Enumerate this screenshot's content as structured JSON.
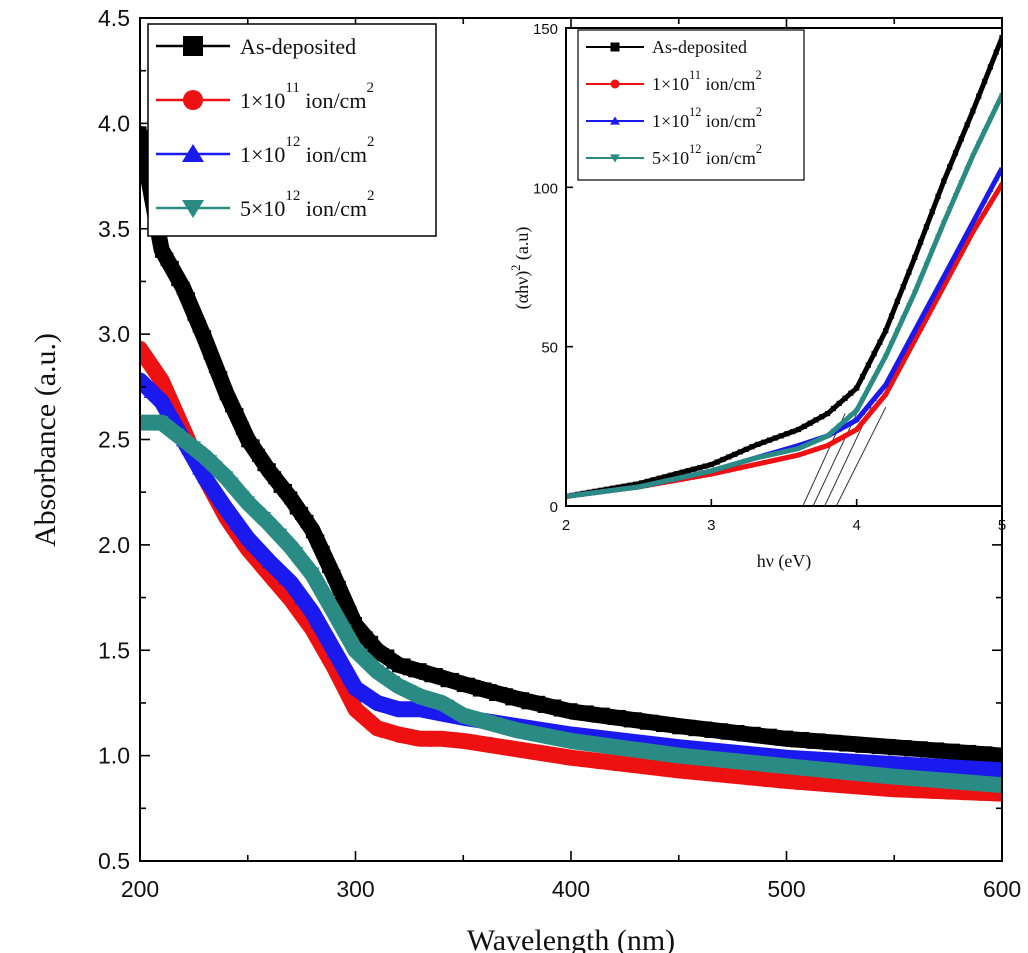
{
  "colors": {
    "black": "#000000",
    "red": "#ee1111",
    "blue": "#1a1aee",
    "teal": "#2a8a84"
  },
  "chart_data": [
    {
      "type": "line",
      "xlabel": "Wavelength (nm)",
      "ylabel": "Absorbance (a.u.)",
      "xlim": [
        200,
        600
      ],
      "ylim": [
        0.5,
        4.5
      ],
      "xticks": [
        "200",
        "300",
        "400",
        "500",
        "600"
      ],
      "yticks": [
        "0.5",
        "1.0",
        "1.5",
        "2.0",
        "2.5",
        "3.0",
        "3.5",
        "4.0",
        "4.5"
      ],
      "legend_position": "top-left",
      "series": [
        {
          "name": "As-deposited",
          "name_parts": [
            "As-deposited",
            "",
            ""
          ],
          "color": "#000000",
          "marker": "square",
          "x": [
            200,
            210,
            220,
            230,
            240,
            250,
            260,
            270,
            280,
            290,
            300,
            310,
            320,
            330,
            340,
            350,
            375,
            400,
            450,
            500,
            550,
            600
          ],
          "y": [
            3.95,
            3.4,
            3.22,
            2.98,
            2.72,
            2.5,
            2.35,
            2.22,
            2.07,
            1.85,
            1.62,
            1.5,
            1.43,
            1.4,
            1.37,
            1.34,
            1.27,
            1.21,
            1.14,
            1.08,
            1.04,
            1.0
          ]
        },
        {
          "name": "1×10^11 ion/cm^2",
          "name_parts": [
            "1×10",
            "11",
            " ion/cm",
            "2"
          ],
          "color": "#ee1111",
          "marker": "circle",
          "x": [
            200,
            210,
            220,
            230,
            240,
            250,
            260,
            270,
            280,
            290,
            300,
            310,
            320,
            330,
            340,
            350,
            375,
            400,
            450,
            500,
            550,
            600
          ],
          "y": [
            2.93,
            2.78,
            2.55,
            2.32,
            2.13,
            1.98,
            1.86,
            1.74,
            1.6,
            1.42,
            1.22,
            1.13,
            1.1,
            1.08,
            1.08,
            1.07,
            1.03,
            0.99,
            0.93,
            0.88,
            0.84,
            0.82
          ]
        },
        {
          "name": "1×10^12 ion/cm^2",
          "name_parts": [
            "1×10",
            "12",
            " ion/cm",
            "2"
          ],
          "color": "#1a1aee",
          "marker": "triangle-up",
          "x": [
            200,
            210,
            220,
            230,
            240,
            250,
            260,
            270,
            280,
            290,
            300,
            310,
            320,
            330,
            340,
            350,
            375,
            400,
            450,
            500,
            550,
            600
          ],
          "y": [
            2.78,
            2.68,
            2.5,
            2.32,
            2.17,
            2.03,
            1.92,
            1.82,
            1.68,
            1.5,
            1.32,
            1.25,
            1.22,
            1.22,
            1.2,
            1.18,
            1.14,
            1.1,
            1.04,
            0.99,
            0.96,
            0.93
          ]
        },
        {
          "name": "5×10^12 ion/cm^2",
          "name_parts": [
            "5×10",
            "12",
            " ion/cm",
            "2"
          ],
          "color": "#2a8a84",
          "marker": "triangle-down",
          "x": [
            200,
            210,
            220,
            230,
            240,
            250,
            260,
            270,
            280,
            290,
            300,
            310,
            320,
            330,
            340,
            350,
            375,
            400,
            450,
            500,
            550,
            600
          ],
          "y": [
            2.58,
            2.58,
            2.5,
            2.42,
            2.32,
            2.2,
            2.1,
            1.99,
            1.86,
            1.68,
            1.5,
            1.4,
            1.33,
            1.28,
            1.25,
            1.19,
            1.12,
            1.07,
            1.0,
            0.95,
            0.9,
            0.86
          ]
        }
      ]
    },
    {
      "type": "line",
      "xlabel": "hν (eV)",
      "ylabel_parts": [
        "(αhν)",
        "2",
        " (a.u)"
      ],
      "xlim": [
        2,
        5
      ],
      "ylim": [
        0,
        150
      ],
      "xticks": [
        "2",
        "3",
        "4",
        "5"
      ],
      "yticks": [
        "0",
        "50",
        "100",
        "150"
      ],
      "legend_position": "top-left",
      "series": [
        {
          "name": "As-deposited",
          "name_parts": [
            "As-deposited",
            "",
            ""
          ],
          "color": "#000000",
          "marker": "square",
          "x": [
            2.0,
            2.5,
            3.0,
            3.3,
            3.6,
            3.8,
            4.0,
            4.2,
            4.4,
            4.6,
            4.8,
            5.0
          ],
          "y": [
            3,
            7,
            13,
            19,
            24,
            29,
            37,
            55,
            78,
            102,
            124,
            147
          ]
        },
        {
          "name": "1×10^11 ion/cm^2",
          "name_parts": [
            "1×10",
            "11",
            " ion/cm",
            "2"
          ],
          "color": "#ee1111",
          "marker": "circle",
          "x": [
            2.0,
            2.5,
            3.0,
            3.3,
            3.6,
            3.8,
            4.0,
            4.2,
            4.4,
            4.6,
            4.8,
            5.0
          ],
          "y": [
            3,
            6,
            10,
            13,
            16,
            19,
            24,
            35,
            52,
            69,
            86,
            101
          ]
        },
        {
          "name": "1×10^12 ion/cm^2",
          "name_parts": [
            "1×10",
            "12",
            " ion/cm",
            "2"
          ],
          "color": "#1a1aee",
          "marker": "triangle-up",
          "x": [
            2.0,
            2.5,
            3.0,
            3.3,
            3.6,
            3.8,
            4.0,
            4.2,
            4.4,
            4.6,
            4.8,
            5.0
          ],
          "y": [
            3,
            6,
            11,
            15,
            19,
            22,
            27,
            38,
            55,
            72,
            89,
            106
          ]
        },
        {
          "name": "5×10^12 ion/cm^2",
          "name_parts": [
            "5×10",
            "12",
            " ion/cm",
            "2"
          ],
          "color": "#2a8a84",
          "marker": "triangle-down",
          "x": [
            2.0,
            2.5,
            3.0,
            3.3,
            3.6,
            3.8,
            4.0,
            4.2,
            4.4,
            4.6,
            4.8,
            5.0
          ],
          "y": [
            3,
            6,
            11,
            15,
            18,
            22,
            30,
            47,
            67,
            89,
            110,
            129
          ]
        }
      ],
      "tangent_lines": [
        {
          "x": [
            3.63,
            3.92
          ],
          "y": [
            0,
            29
          ]
        },
        {
          "x": [
            3.7,
            4.0
          ],
          "y": [
            0,
            29
          ]
        },
        {
          "x": [
            3.78,
            4.1
          ],
          "y": [
            0,
            31
          ]
        },
        {
          "x": [
            3.86,
            4.2
          ],
          "y": [
            0,
            31
          ]
        }
      ]
    }
  ]
}
